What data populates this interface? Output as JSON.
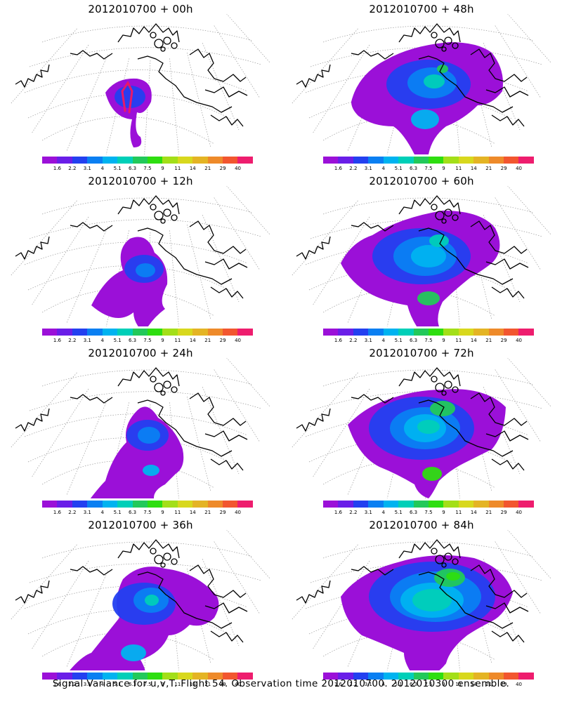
{
  "panels": [
    {
      "title": "2012010700 + 00h",
      "stage": 0,
      "has_track": true
    },
    {
      "title": "2012010700 + 48h",
      "stage": 4,
      "has_track": false
    },
    {
      "title": "2012010700 + 12h",
      "stage": 1,
      "has_track": false
    },
    {
      "title": "2012010700 + 60h",
      "stage": 5,
      "has_track": false
    },
    {
      "title": "2012010700 + 24h",
      "stage": 2,
      "has_track": false
    },
    {
      "title": "2012010700 + 72h",
      "stage": 6,
      "has_track": false
    },
    {
      "title": "2012010700 + 36h",
      "stage": 3,
      "has_track": false
    },
    {
      "title": "2012010700 + 84h",
      "stage": 7,
      "has_track": false
    }
  ],
  "colorbar": {
    "labels": [
      "1.6",
      "2.2",
      "3.1",
      "4",
      "5.1",
      "6.3",
      "7.5",
      "9",
      "11",
      "14",
      "21",
      "29",
      "40"
    ],
    "colors": [
      "#9b10d8",
      "#6a1ee8",
      "#2340f0",
      "#0a7ff2",
      "#00b3f0",
      "#00cfb8",
      "#22c95a",
      "#2ede10",
      "#a3df18",
      "#d8d81d",
      "#e4b424",
      "#ee8a2a",
      "#f2562f",
      "#ee1d6e"
    ]
  },
  "footer": "Signal Variance for u,v,T. Flight 54. Observation time 2012010700. 2012010300 ensemble."
}
